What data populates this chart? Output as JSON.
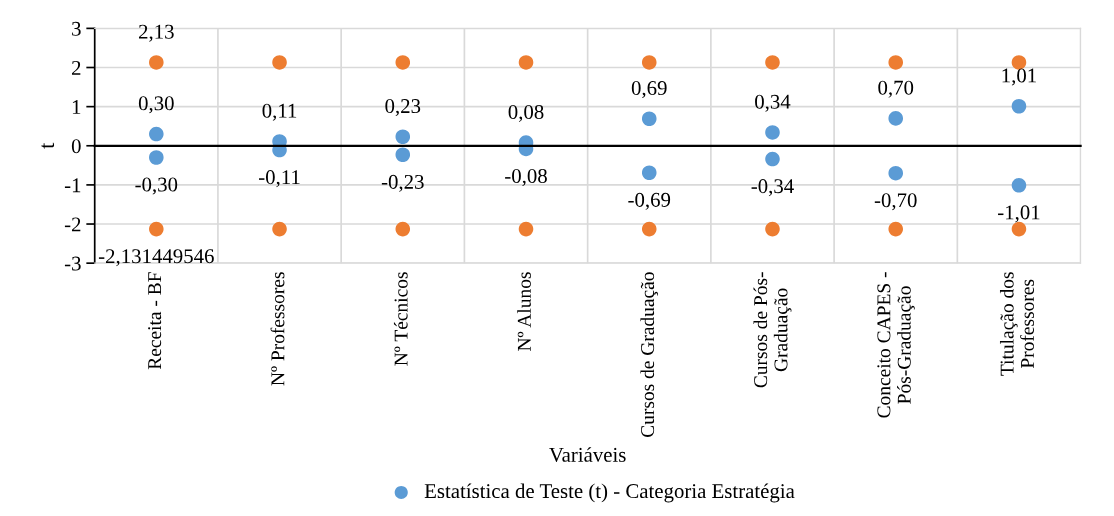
{
  "chart_data": {
    "type": "scatter",
    "xlabel": "Variáveis",
    "ylabel": "t",
    "categories": [
      "Receita - BF",
      "Nº Professores",
      "Nº Técnicos",
      "Nº Alunos",
      "Cursos de Graduação",
      "Cursos de Pós-\nGraduação",
      "Conceito CAPES -\nPós-Graduação",
      "Titulação dos\nProfessores"
    ],
    "series": [
      {
        "name": "Estatística de Teste (t) - Categoria Estratégia",
        "color": "#5b9bd5",
        "values": [
          0.3,
          0.11,
          0.23,
          0.08,
          0.69,
          0.34,
          0.7,
          1.01
        ],
        "value_labels": [
          "0,30",
          "0,11",
          "0,23",
          "0,08",
          "0,69",
          "0,34",
          "0,70",
          "1,01"
        ]
      },
      {
        "color": "#5b9bd5",
        "values": [
          -0.3,
          -0.11,
          -0.23,
          -0.08,
          -0.69,
          -0.34,
          -0.7,
          -1.01
        ],
        "value_labels": [
          "-0,30",
          "-0,11",
          "-0,23",
          "-0,08",
          "-0,69",
          "-0,34",
          "-0,70",
          "-1,01"
        ]
      },
      {
        "color": "#ed7d31",
        "values": [
          2.13,
          2.13,
          2.13,
          2.13,
          2.13,
          2.13,
          2.13,
          2.13
        ],
        "value_labels": [
          "2,13",
          null,
          null,
          null,
          null,
          null,
          null,
          null
        ]
      },
      {
        "color": "#ed7d31",
        "values": [
          -2.13,
          -2.13,
          -2.13,
          -2.13,
          -2.13,
          -2.13,
          -2.13,
          -2.13
        ],
        "value_labels": [
          "-2,131449546",
          null,
          null,
          null,
          null,
          null,
          null,
          null
        ]
      }
    ],
    "ylim": [
      -3,
      3
    ],
    "yticks": [
      -3,
      -2,
      -1,
      0,
      1,
      2,
      3
    ],
    "grid": true,
    "legend": "bottom",
    "marker": "circle"
  }
}
